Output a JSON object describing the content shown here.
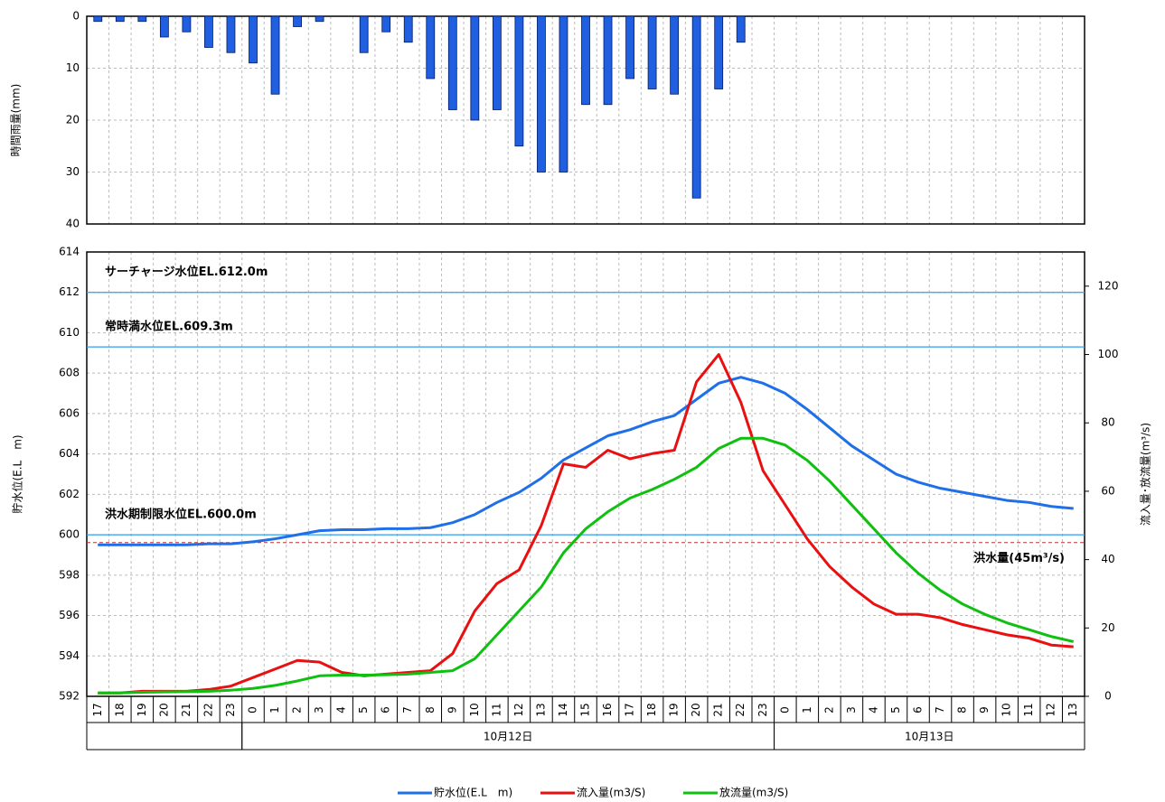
{
  "chart_data": [
    {
      "type": "bar",
      "y_label": "時間雨量(mm)",
      "ylim": [
        0,
        40
      ],
      "yticks": [
        0,
        10,
        20,
        30,
        40
      ],
      "y_inverted": true,
      "grid": true,
      "color": "#1f5fe0",
      "values": [
        1,
        1,
        1,
        4,
        3,
        6,
        7,
        9,
        15,
        2,
        1,
        0,
        7,
        3,
        5,
        12,
        18,
        20,
        18,
        25,
        30,
        30,
        17,
        17,
        12,
        14,
        15,
        35,
        14,
        5,
        0,
        0,
        0,
        0,
        0,
        0,
        0,
        0,
        0,
        0,
        0,
        0,
        0,
        0,
        0
      ]
    },
    {
      "type": "line",
      "y_label": "貯水位(E.L　m)",
      "y2_label": "流入量･放流量(m³/s)",
      "categories": [
        "17",
        "18",
        "19",
        "20",
        "21",
        "22",
        "23",
        "0",
        "1",
        "2",
        "3",
        "4",
        "5",
        "6",
        "7",
        "8",
        "9",
        "10",
        "11",
        "12",
        "13",
        "14",
        "15",
        "16",
        "17",
        "18",
        "19",
        "20",
        "21",
        "22",
        "23",
        "0",
        "1",
        "2",
        "3",
        "4",
        "5",
        "6",
        "7",
        "8",
        "9",
        "10",
        "11",
        "12",
        "13"
      ],
      "category_groups": [
        {
          "label": null,
          "count": 7
        },
        {
          "label": "10月12日",
          "count": 24
        },
        {
          "label": "10月13日",
          "count": 14
        }
      ],
      "ylim": [
        592,
        614
      ],
      "yticks": [
        592,
        594,
        596,
        598,
        600,
        602,
        604,
        606,
        608,
        610,
        612,
        614
      ],
      "y2lim": [
        0,
        130
      ],
      "y2ticks": [
        0,
        20,
        40,
        60,
        80,
        100,
        120
      ],
      "grid": true,
      "series": [
        {
          "name": "貯水位(E.L　m)",
          "color": "#1f6fe8",
          "values": [
            599.5,
            599.5,
            599.5,
            599.5,
            599.5,
            599.55,
            599.55,
            599.65,
            599.8,
            600.0,
            600.2,
            600.25,
            600.25,
            600.3,
            600.3,
            600.35,
            600.6,
            601.0,
            601.6,
            602.1,
            602.8,
            603.7,
            604.3,
            604.9,
            605.2,
            605.6,
            605.9,
            606.7,
            607.5,
            607.8,
            607.5,
            607.0,
            606.2,
            605.3,
            604.4,
            603.7,
            603.0,
            602.6,
            602.3,
            602.1,
            601.9,
            601.7,
            601.6,
            601.4,
            601.3
          ]
        },
        {
          "name": "流入量(m3/S)",
          "color": "#e81010",
          "axis": "y2",
          "values": [
            1,
            1,
            1.5,
            1.5,
            1.5,
            2,
            3,
            5.5,
            8,
            10.5,
            10,
            7,
            6,
            6.5,
            7,
            7.5,
            12.5,
            25,
            33,
            37,
            50,
            68,
            67,
            72,
            69.5,
            71,
            72,
            92,
            100,
            86,
            66,
            56,
            46,
            38,
            32,
            27,
            24,
            24,
            23,
            21,
            19.5,
            18,
            17,
            15,
            14.5
          ]
        },
        {
          "name": "放流量(m3/S)",
          "color": "#10c010",
          "axis": "y2",
          "values": [
            1,
            1,
            1.2,
            1.3,
            1.4,
            1.5,
            1.8,
            2.3,
            3.2,
            4.5,
            6,
            6.2,
            6.2,
            6.3,
            6.5,
            7,
            7.5,
            11,
            18,
            25,
            32,
            42,
            49,
            54,
            58,
            60.5,
            63.5,
            67,
            72.5,
            75.5,
            75.5,
            73.5,
            69,
            63,
            56,
            49,
            42,
            36,
            31,
            27,
            24,
            21.5,
            19.5,
            17.5,
            16
          ]
        }
      ],
      "reference_lines": [
        {
          "label": "サーチャージ水位EL.612.0m",
          "value": 612.0,
          "color": "#2aa0f0"
        },
        {
          "label": "常時満水位EL.609.3m",
          "value": 609.3,
          "color": "#2aa0f0"
        },
        {
          "label": "洪水期制限水位EL.600.0m",
          "value": 600.0,
          "color": "#2aa0f0"
        },
        {
          "label": "洪水量(45m³/s)",
          "value": 45,
          "axis": "y2",
          "color": "#c03030",
          "dashed": true
        }
      ]
    }
  ]
}
